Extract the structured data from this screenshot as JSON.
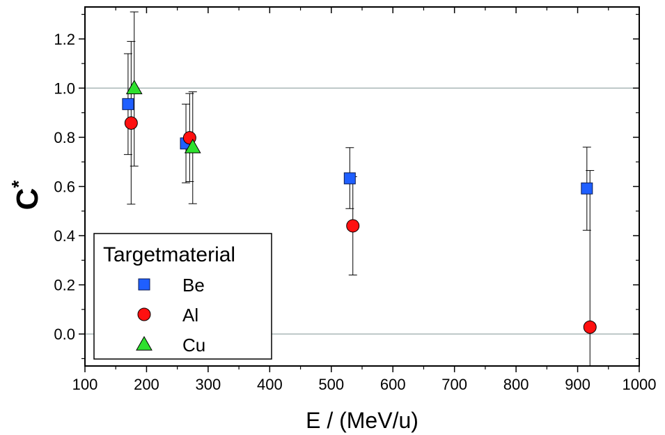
{
  "chart_data": {
    "type": "scatter",
    "title": "",
    "xlabel": "E / (MeV/u)",
    "ylabel_main": "C",
    "ylabel_sup": "*",
    "xlim": [
      100,
      1000
    ],
    "ylim": [
      -0.13,
      1.33
    ],
    "x_ticks": [
      100,
      200,
      300,
      400,
      500,
      600,
      700,
      800,
      900,
      1000
    ],
    "x_tick_labels": [
      "100",
      "200",
      "300",
      "400",
      "500",
      "600",
      "700",
      "800",
      "900",
      "1000"
    ],
    "y_ticks": [
      0.0,
      0.2,
      0.4,
      0.6,
      0.8,
      1.0,
      1.2
    ],
    "y_tick_labels": [
      "0.0",
      "0.2",
      "0.4",
      "0.6",
      "0.8",
      "1.0",
      "1.2"
    ],
    "reference_lines": [
      0.0,
      1.0
    ],
    "grid": false,
    "legend": {
      "title": "Targetmaterial",
      "placement": "bottom-left"
    },
    "series": [
      {
        "name": "Be",
        "marker": "square",
        "color": "#1f5fff",
        "points": [
          {
            "x": 170,
            "y": 0.935,
            "err_low": 0.73,
            "err_high": 1.14
          },
          {
            "x": 264,
            "y": 0.775,
            "err_low": 0.615,
            "err_high": 0.935
          },
          {
            "x": 530,
            "y": 0.633,
            "err_low": 0.51,
            "err_high": 0.758
          },
          {
            "x": 915,
            "y": 0.592,
            "err_low": 0.422,
            "err_high": 0.76
          }
        ]
      },
      {
        "name": "Al",
        "marker": "circle",
        "color": "#ff1010",
        "points": [
          {
            "x": 175,
            "y": 0.858,
            "err_low": 0.528,
            "err_high": 1.19
          },
          {
            "x": 270,
            "y": 0.798,
            "err_low": 0.62,
            "err_high": 0.978
          },
          {
            "x": 535,
            "y": 0.44,
            "err_low": 0.24,
            "err_high": 0.64
          },
          {
            "x": 920,
            "y": 0.028,
            "err_low": -0.13,
            "err_high": 0.665
          }
        ]
      },
      {
        "name": "Cu",
        "marker": "triangle",
        "color": "#2ee02e",
        "points": [
          {
            "x": 180,
            "y": 1.0,
            "err_low": 0.683,
            "err_high": 1.31
          },
          {
            "x": 275,
            "y": 0.76,
            "err_low": 0.53,
            "err_high": 0.985
          }
        ]
      }
    ]
  }
}
